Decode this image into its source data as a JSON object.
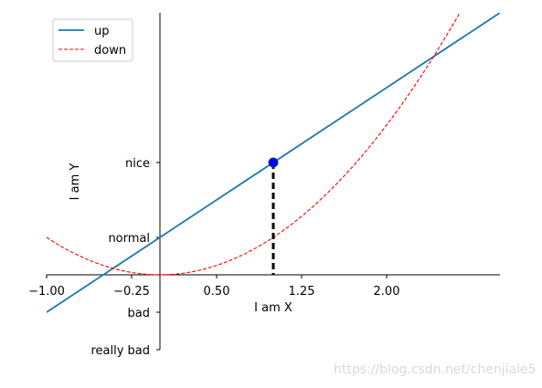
{
  "chart_data": {
    "type": "line",
    "xlabel": "I am X",
    "ylabel": "I am Y",
    "xlim": [
      -1,
      3
    ],
    "ylim": [
      -2,
      7
    ],
    "x_ticks": [
      {
        "value": -1,
        "label": "−1.00"
      },
      {
        "value": -0.25,
        "label": "−0.25"
      },
      {
        "value": 0.5,
        "label": "0.50"
      },
      {
        "value": 1.25,
        "label": "1.25"
      },
      {
        "value": 2,
        "label": "2.00"
      }
    ],
    "y_ticks": [
      {
        "value": -2,
        "label": "really bad"
      },
      {
        "value": -1,
        "label": "bad"
      },
      {
        "value": 1,
        "label": "normal"
      },
      {
        "value": 3,
        "label": "nice"
      }
    ],
    "series": [
      {
        "name": "up",
        "formula": "2x+1",
        "color": "#1f77b4",
        "style": "solid",
        "x": [
          -1,
          3
        ],
        "y": [
          -1,
          7
        ]
      },
      {
        "name": "down",
        "formula": "x^2",
        "color": "#ff0000",
        "style": "dashed",
        "x": [
          -1,
          -0.5,
          0,
          0.5,
          1,
          1.5,
          2,
          2.5,
          2.65
        ],
        "y": [
          1,
          0.25,
          0,
          0.25,
          1,
          2.25,
          4,
          6.25,
          7.02
        ]
      }
    ],
    "annotation": {
      "point": [
        1,
        3
      ],
      "color": "#0000ff",
      "dropline": "dashed black to x-axis"
    },
    "legend": {
      "position": "top-left",
      "entries": [
        "up",
        "down"
      ]
    },
    "spines": "centered at origin; top and right hidden",
    "grid": false
  },
  "watermark": "https://blog.csdn.net/chenjiale5"
}
